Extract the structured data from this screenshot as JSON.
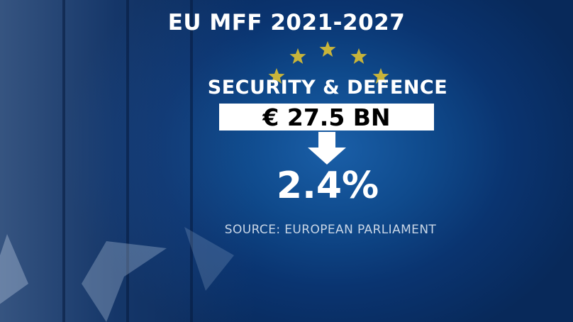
{
  "title": "EU MFF 2021-2027",
  "category_label": "SECURITY & DEFENCE",
  "amount": "€ 27.5 BN",
  "percent": "2.4%",
  "source": "SOURCE: EUROPEAN PARLIAMENT",
  "colors": {
    "background": "#0f4a8c",
    "star_gold": "#c8b43a",
    "text": "#ffffff",
    "amount_box": "#ffffff"
  },
  "icons": [
    "eu-stars-icon",
    "down-arrow-icon"
  ]
}
